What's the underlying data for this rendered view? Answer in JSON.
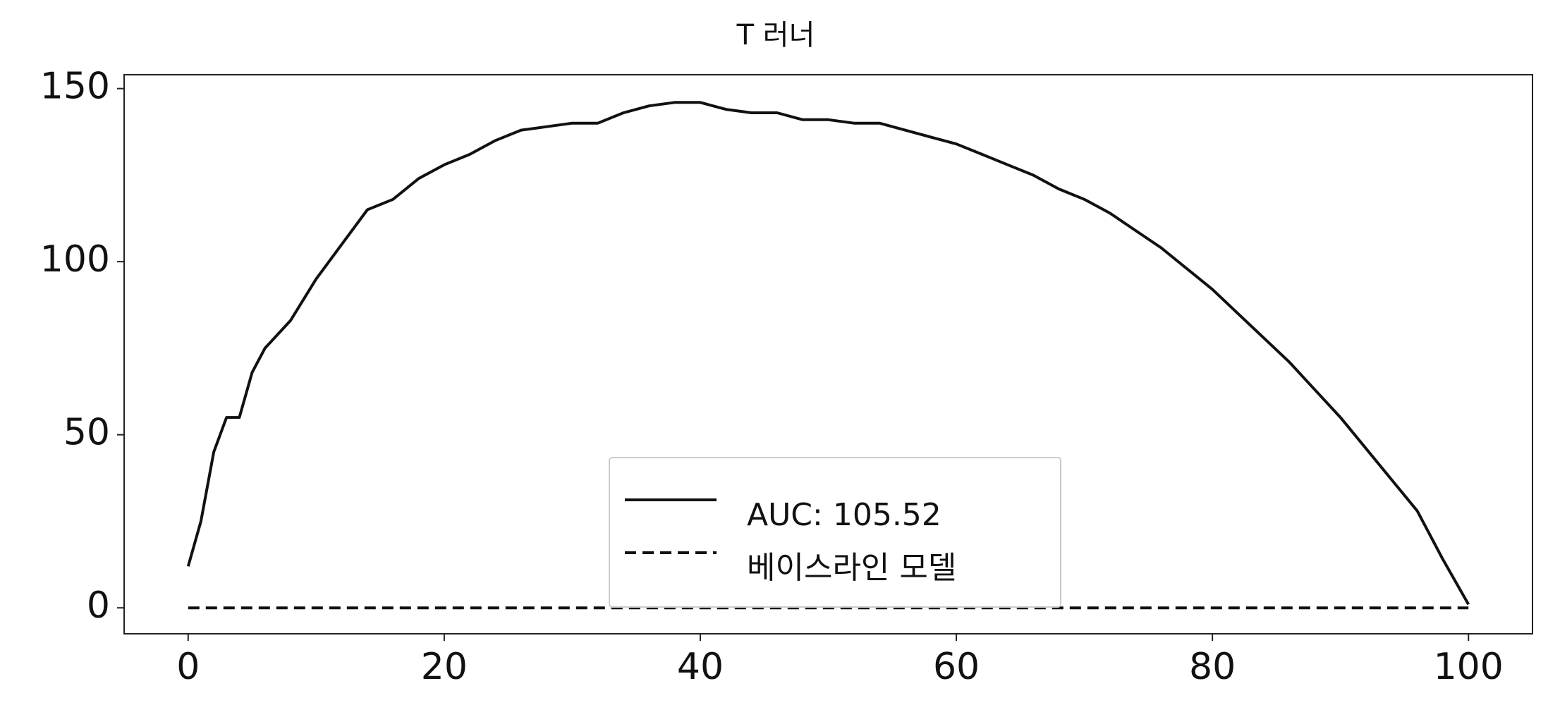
{
  "chart_data": {
    "type": "line",
    "title": "T 러너",
    "xlim": [
      -5,
      105
    ],
    "ylim": [
      -7.5,
      154
    ],
    "xticks": [
      0,
      20,
      40,
      60,
      80,
      100
    ],
    "yticks": [
      0,
      50,
      100,
      150
    ],
    "grid": false,
    "legend": "bottom-center",
    "series": [
      {
        "name": "AUC: 105.52",
        "color": "#111111",
        "dash": "solid",
        "x": [
          0,
          1,
          2,
          3,
          4,
          5,
          6,
          8,
          10,
          12,
          14,
          16,
          18,
          20,
          22,
          24,
          26,
          28,
          30,
          32,
          34,
          36,
          38,
          40,
          42,
          44,
          46,
          48,
          50,
          52,
          54,
          56,
          58,
          60,
          62,
          64,
          66,
          68,
          70,
          72,
          74,
          76,
          78,
          80,
          82,
          84,
          86,
          88,
          90,
          92,
          94,
          96,
          98,
          100
        ],
        "values": [
          12,
          25,
          45,
          55,
          55,
          68,
          75,
          83,
          95,
          105,
          115,
          118,
          124,
          128,
          131,
          135,
          138,
          139,
          140,
          140,
          143,
          145,
          146,
          146,
          144,
          143,
          143,
          141,
          141,
          140,
          140,
          138,
          136,
          134,
          131,
          128,
          125,
          121,
          118,
          114,
          109,
          104,
          98,
          92,
          85,
          78,
          71,
          63,
          55,
          46,
          37,
          28,
          14,
          1
        ]
      },
      {
        "name": "베이스라인 모델",
        "color": "#111111",
        "dash": "dashed",
        "x": [
          0,
          100
        ],
        "values": [
          0,
          0
        ]
      }
    ]
  }
}
